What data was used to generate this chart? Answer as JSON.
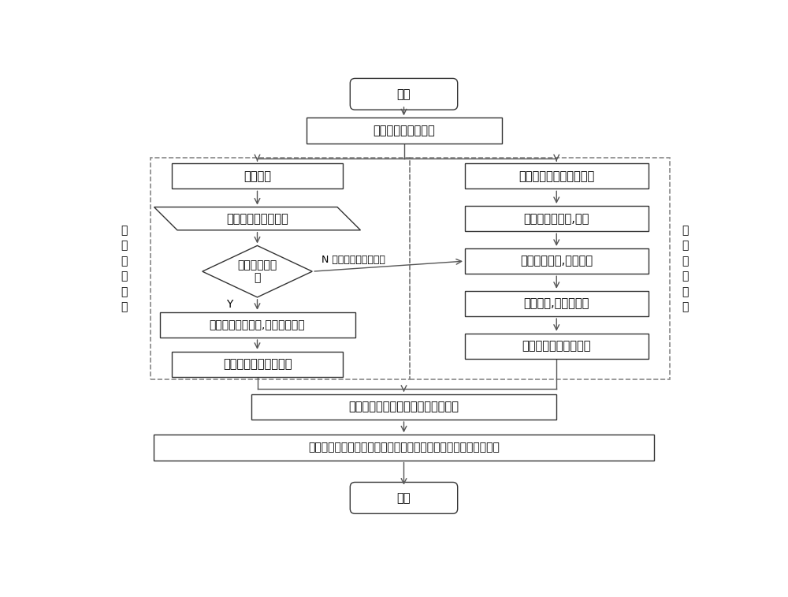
{
  "bg_color": "#ffffff",
  "box_fc": "#ffffff",
  "box_ec": "#333333",
  "arrow_color": "#555555",
  "dash_ec": "#888888",
  "lw": 1.0,
  "alw": 1.0,
  "fs": 10.5,
  "start_label": "开始",
  "deploy_label": "部署视频流采集环境",
  "vid_seg_label": "视频分段",
  "judge_label": "判断视频图像变化率",
  "diamond_label": "是否是播放图\n像",
  "merge_label": "合并相关视频分段,进行特征标注",
  "rec_l_label": "记录时间值，入数据库",
  "v2a_label": "视频文件转换成音频文件",
  "audio_feat_label": "音频特征值提取,采样",
  "feat_match_label": "进行特征匹配,聚类分析",
  "classify_label": "完成分类,特征值标注",
  "rec_r_label": "记录时间值，入数据库",
  "teaching_label": "教学过程、教学特点分析和自动生成",
  "index_label": "以课程信息和时间为索引，对接学情分析数据，生成教学诊断信息",
  "end_label": "结束",
  "left_side_label": "图\n像\n识\n别\n处\n理",
  "right_side_label": "声\n纹\n识\n别\n处\n理",
  "n_label": "N 由声纹识别模块处理",
  "y_label": "Y"
}
